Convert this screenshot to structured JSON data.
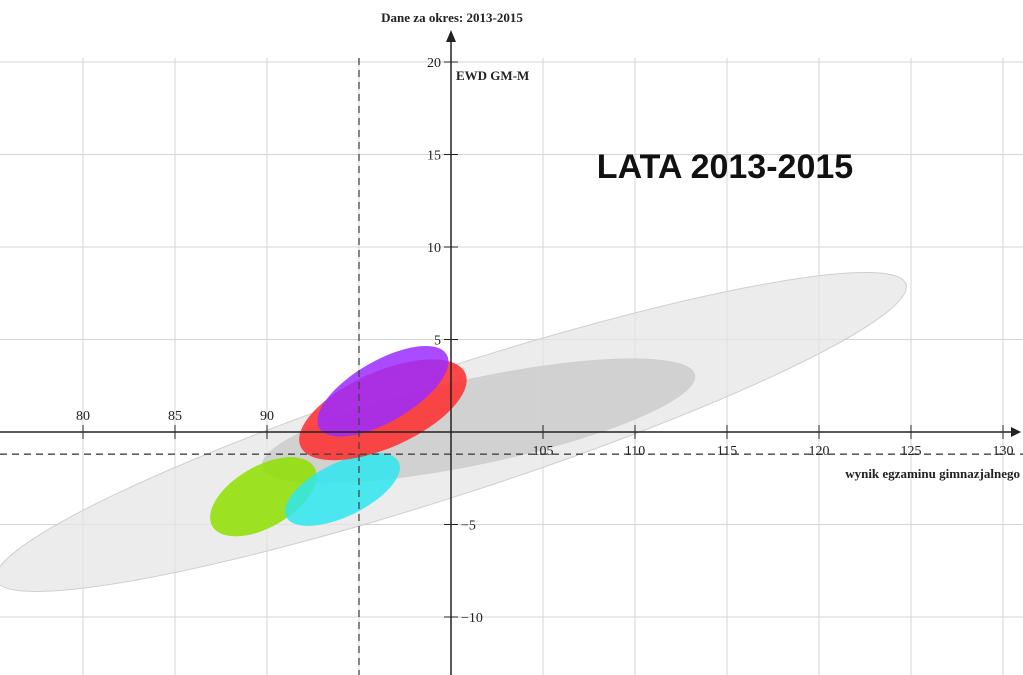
{
  "chart_data": {
    "type": "scatter",
    "title": "Dane za okres: 2013-2015",
    "annotation": "LATA 2013-2015",
    "xlabel": "wynik egzaminu gimnazjalnego",
    "ylabel": "EWD GM-M",
    "xlim": [
      70,
      131
    ],
    "ylim": [
      -13,
      20.5
    ],
    "x_ticks": [
      80,
      85,
      90,
      105,
      110,
      115,
      120,
      125,
      130
    ],
    "y_ticks": [
      20,
      15,
      10,
      5,
      -5,
      -10
    ],
    "grid": true,
    "origin": {
      "x": 100,
      "y": 0
    },
    "reference_lines": {
      "x": 95,
      "y": -1.2
    },
    "ellipses": [
      {
        "id": "large-grey",
        "cx": 100,
        "cy": 0,
        "rx": 26,
        "ry": 3.4,
        "angle_deg": -18,
        "color": "#e6e6e6"
      },
      {
        "id": "dark-grey",
        "cx": 101.5,
        "cy": 0.6,
        "rx": 12,
        "ry": 2.3,
        "angle_deg": -12,
        "color": "#c8c8c8"
      },
      {
        "id": "green",
        "cx": 89.8,
        "cy": -3.5,
        "rx": 3.2,
        "ry": 1.65,
        "angle_deg": -30,
        "color": "#8ee000"
      },
      {
        "id": "cyan",
        "cx": 94.1,
        "cy": -3.1,
        "rx": 3.4,
        "ry": 1.45,
        "angle_deg": -26,
        "color": "#2ee6ee"
      },
      {
        "id": "red",
        "cx": 96.3,
        "cy": 1.2,
        "rx": 4.9,
        "ry": 2.05,
        "angle_deg": -24,
        "color": "#ff2b2b"
      },
      {
        "id": "purple",
        "cx": 96.3,
        "cy": 2.2,
        "rx": 4.0,
        "ry": 1.65,
        "angle_deg": -30,
        "color": "#9c2bff"
      }
    ]
  }
}
